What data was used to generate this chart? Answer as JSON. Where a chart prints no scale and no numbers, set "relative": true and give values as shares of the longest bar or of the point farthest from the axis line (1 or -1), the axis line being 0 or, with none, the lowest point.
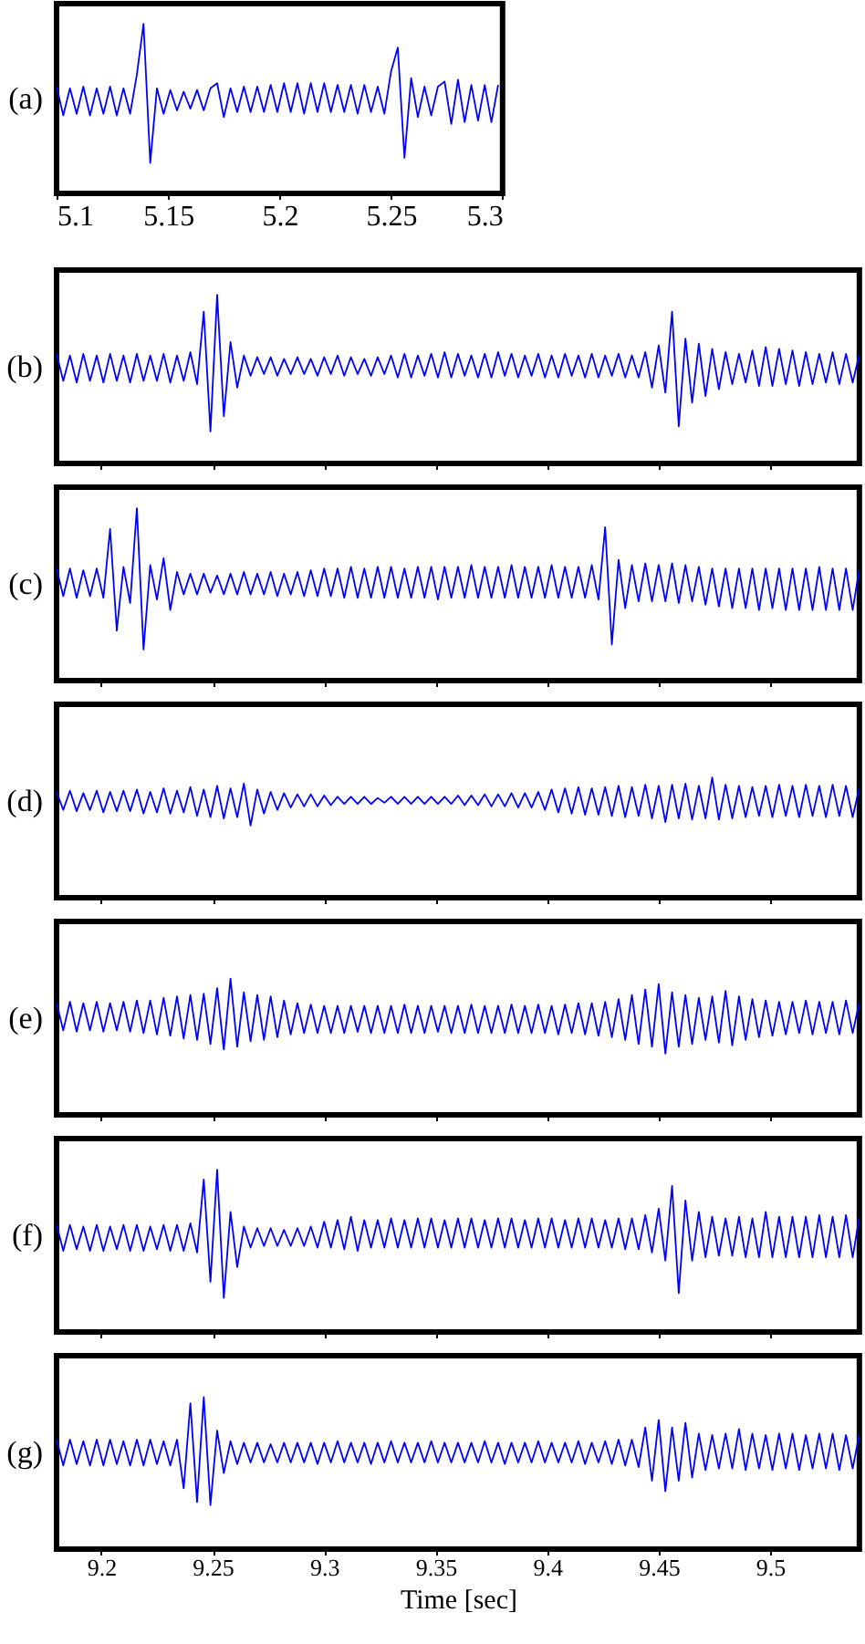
{
  "chart_data": [
    {
      "type": "line",
      "ylabel": "(a)",
      "relative": true,
      "tick_labels": "x",
      "xlim": [
        5.1,
        5.3
      ],
      "xticks": [
        5.1,
        5.15,
        5.2,
        5.25,
        5.3
      ],
      "x": [
        5.1,
        5.103,
        5.106,
        5.109,
        5.112,
        5.115,
        5.118,
        5.121,
        5.124,
        5.127,
        5.13,
        5.133,
        5.136,
        5.139,
        5.142,
        5.145,
        5.148,
        5.151,
        5.154,
        5.157,
        5.16,
        5.163,
        5.166,
        5.169,
        5.172,
        5.175,
        5.178,
        5.181,
        5.184,
        5.187,
        5.19,
        5.193,
        5.196,
        5.199,
        5.202,
        5.205,
        5.208,
        5.211,
        5.214,
        5.217,
        5.22,
        5.223,
        5.226,
        5.229,
        5.232,
        5.235,
        5.238,
        5.241,
        5.244,
        5.247,
        5.25,
        5.253,
        5.256,
        5.259,
        5.262,
        5.265,
        5.268,
        5.271,
        5.274,
        5.277,
        5.28,
        5.283,
        5.286,
        5.289,
        5.292,
        5.295,
        5.298
      ],
      "series": [
        {
          "color": "#0000ff",
          "values": [
            0.63,
            0.46,
            0.62,
            0.47,
            0.63,
            0.46,
            0.62,
            0.47,
            0.63,
            0.46,
            0.62,
            0.47,
            0.7,
            1.0,
            0.18,
            0.62,
            0.47,
            0.61,
            0.49,
            0.6,
            0.5,
            0.61,
            0.49,
            0.62,
            0.65,
            0.45,
            0.62,
            0.48,
            0.63,
            0.48,
            0.63,
            0.48,
            0.64,
            0.48,
            0.65,
            0.48,
            0.65,
            0.47,
            0.65,
            0.48,
            0.65,
            0.48,
            0.64,
            0.48,
            0.64,
            0.47,
            0.64,
            0.48,
            0.63,
            0.47,
            0.72,
            0.86,
            0.21,
            0.68,
            0.45,
            0.63,
            0.46,
            0.63,
            0.66,
            0.41,
            0.67,
            0.42,
            0.64,
            0.43,
            0.64,
            0.42,
            0.64
          ]
        }
      ]
    },
    {
      "type": "line",
      "ylabel": "(b)",
      "relative": true,
      "tick_labels": false,
      "xlim": [
        9.18,
        9.54
      ],
      "xticks": [
        9.2,
        9.25,
        9.3,
        9.35,
        9.4,
        9.45,
        9.5
      ],
      "x": [
        9.18,
        9.183,
        9.186,
        9.189,
        9.192,
        9.195,
        9.198,
        9.201,
        9.204,
        9.207,
        9.21,
        9.213,
        9.216,
        9.219,
        9.222,
        9.225,
        9.228,
        9.231,
        9.234,
        9.237,
        9.24,
        9.243,
        9.246,
        9.249,
        9.252,
        9.255,
        9.258,
        9.261,
        9.264,
        9.267,
        9.27,
        9.273,
        9.276,
        9.279,
        9.282,
        9.285,
        9.288,
        9.291,
        9.294,
        9.297,
        9.3,
        9.303,
        9.306,
        9.309,
        9.312,
        9.315,
        9.318,
        9.321,
        9.324,
        9.327,
        9.33,
        9.333,
        9.336,
        9.339,
        9.342,
        9.345,
        9.348,
        9.351,
        9.354,
        9.357,
        9.36,
        9.363,
        9.366,
        9.369,
        9.372,
        9.375,
        9.378,
        9.381,
        9.384,
        9.387,
        9.39,
        9.393,
        9.396,
        9.399,
        9.402,
        9.405,
        9.408,
        9.411,
        9.414,
        9.417,
        9.42,
        9.423,
        9.426,
        9.429,
        9.432,
        9.435,
        9.438,
        9.441,
        9.444,
        9.447,
        9.45,
        9.453,
        9.456,
        9.459,
        9.462,
        9.465,
        9.468,
        9.471,
        9.474,
        9.477,
        9.48,
        9.483,
        9.486,
        9.489,
        9.492,
        9.495,
        9.498,
        9.501,
        9.504,
        9.507,
        9.51,
        9.513,
        9.516,
        9.519,
        9.522,
        9.525,
        9.528,
        9.531,
        9.534,
        9.537,
        9.54
      ],
      "series": [
        {
          "color": "#0000ff",
          "values": [
            0.65,
            0.49,
            0.64,
            0.48,
            0.65,
            0.49,
            0.64,
            0.48,
            0.65,
            0.49,
            0.64,
            0.48,
            0.65,
            0.49,
            0.64,
            0.49,
            0.65,
            0.48,
            0.64,
            0.49,
            0.66,
            0.47,
            0.9,
            0.19,
            1.0,
            0.28,
            0.72,
            0.45,
            0.64,
            0.52,
            0.63,
            0.53,
            0.63,
            0.52,
            0.62,
            0.53,
            0.63,
            0.53,
            0.62,
            0.52,
            0.63,
            0.53,
            0.64,
            0.52,
            0.63,
            0.53,
            0.62,
            0.52,
            0.63,
            0.53,
            0.64,
            0.51,
            0.65,
            0.51,
            0.64,
            0.52,
            0.65,
            0.51,
            0.66,
            0.51,
            0.65,
            0.52,
            0.64,
            0.51,
            0.65,
            0.51,
            0.66,
            0.52,
            0.65,
            0.51,
            0.64,
            0.52,
            0.65,
            0.51,
            0.64,
            0.51,
            0.65,
            0.52,
            0.64,
            0.51,
            0.65,
            0.51,
            0.64,
            0.52,
            0.65,
            0.51,
            0.64,
            0.51,
            0.66,
            0.45,
            0.7,
            0.42,
            0.9,
            0.22,
            0.74,
            0.36,
            0.71,
            0.4,
            0.68,
            0.44,
            0.66,
            0.47,
            0.65,
            0.48,
            0.67,
            0.46,
            0.69,
            0.46,
            0.68,
            0.47,
            0.67,
            0.46,
            0.66,
            0.47,
            0.65,
            0.48,
            0.66,
            0.47,
            0.65,
            0.48,
            0.65
          ]
        }
      ]
    },
    {
      "type": "line",
      "ylabel": "(c)",
      "relative": true,
      "tick_labels": false,
      "xlim": [
        9.18,
        9.54
      ],
      "xticks": [
        9.2,
        9.25,
        9.3,
        9.35,
        9.4,
        9.45,
        9.5
      ],
      "x": [
        9.18,
        9.183,
        9.186,
        9.189,
        9.192,
        9.195,
        9.198,
        9.201,
        9.204,
        9.207,
        9.21,
        9.213,
        9.216,
        9.219,
        9.222,
        9.225,
        9.228,
        9.231,
        9.234,
        9.237,
        9.24,
        9.243,
        9.246,
        9.249,
        9.252,
        9.255,
        9.258,
        9.261,
        9.264,
        9.267,
        9.27,
        9.273,
        9.276,
        9.279,
        9.282,
        9.285,
        9.288,
        9.291,
        9.294,
        9.297,
        9.3,
        9.303,
        9.306,
        9.309,
        9.312,
        9.315,
        9.318,
        9.321,
        9.324,
        9.327,
        9.33,
        9.333,
        9.336,
        9.339,
        9.342,
        9.345,
        9.348,
        9.351,
        9.354,
        9.357,
        9.36,
        9.363,
        9.366,
        9.369,
        9.372,
        9.375,
        9.378,
        9.381,
        9.384,
        9.387,
        9.39,
        9.393,
        9.396,
        9.399,
        9.402,
        9.405,
        9.408,
        9.411,
        9.414,
        9.417,
        9.42,
        9.423,
        9.426,
        9.429,
        9.432,
        9.435,
        9.438,
        9.441,
        9.444,
        9.447,
        9.45,
        9.453,
        9.456,
        9.459,
        9.462,
        9.465,
        9.468,
        9.471,
        9.474,
        9.477,
        9.48,
        9.483,
        9.486,
        9.489,
        9.492,
        9.495,
        9.498,
        9.501,
        9.504,
        9.507,
        9.51,
        9.513,
        9.516,
        9.519,
        9.522,
        9.525,
        9.528,
        9.531,
        9.534,
        9.537,
        9.54
      ],
      "series": [
        {
          "color": "#0000ff",
          "values": [
            0.65,
            0.49,
            0.65,
            0.48,
            0.64,
            0.49,
            0.65,
            0.48,
            0.88,
            0.29,
            0.66,
            0.45,
            1.0,
            0.18,
            0.67,
            0.47,
            0.71,
            0.41,
            0.63,
            0.5,
            0.62,
            0.5,
            0.62,
            0.51,
            0.61,
            0.5,
            0.62,
            0.5,
            0.63,
            0.5,
            0.62,
            0.5,
            0.63,
            0.49,
            0.62,
            0.5,
            0.63,
            0.49,
            0.64,
            0.49,
            0.65,
            0.49,
            0.65,
            0.48,
            0.66,
            0.48,
            0.65,
            0.48,
            0.66,
            0.48,
            0.66,
            0.48,
            0.65,
            0.48,
            0.66,
            0.48,
            0.66,
            0.47,
            0.66,
            0.48,
            0.66,
            0.48,
            0.67,
            0.48,
            0.66,
            0.48,
            0.66,
            0.48,
            0.67,
            0.48,
            0.66,
            0.48,
            0.66,
            0.48,
            0.67,
            0.48,
            0.66,
            0.48,
            0.66,
            0.48,
            0.67,
            0.47,
            0.89,
            0.21,
            0.7,
            0.42,
            0.67,
            0.46,
            0.68,
            0.46,
            0.67,
            0.46,
            0.68,
            0.45,
            0.67,
            0.46,
            0.66,
            0.44,
            0.65,
            0.43,
            0.65,
            0.42,
            0.65,
            0.42,
            0.65,
            0.41,
            0.65,
            0.42,
            0.65,
            0.41,
            0.65,
            0.41,
            0.65,
            0.41,
            0.66,
            0.41,
            0.65,
            0.41,
            0.65,
            0.41,
            0.65
          ]
        }
      ]
    },
    {
      "type": "line",
      "ylabel": "(d)",
      "relative": true,
      "tick_labels": false,
      "xlim": [
        9.18,
        9.54
      ],
      "xticks": [
        9.2,
        9.25,
        9.3,
        9.35,
        9.4,
        9.45,
        9.5
      ],
      "x": [
        9.18,
        9.183,
        9.186,
        9.189,
        9.192,
        9.195,
        9.198,
        9.201,
        9.204,
        9.207,
        9.21,
        9.213,
        9.216,
        9.219,
        9.222,
        9.225,
        9.228,
        9.231,
        9.234,
        9.237,
        9.24,
        9.243,
        9.246,
        9.249,
        9.252,
        9.255,
        9.258,
        9.261,
        9.264,
        9.267,
        9.27,
        9.273,
        9.276,
        9.279,
        9.282,
        9.285,
        9.288,
        9.291,
        9.294,
        9.297,
        9.3,
        9.303,
        9.306,
        9.309,
        9.312,
        9.315,
        9.318,
        9.321,
        9.324,
        9.327,
        9.33,
        9.333,
        9.336,
        9.339,
        9.342,
        9.345,
        9.348,
        9.351,
        9.354,
        9.357,
        9.36,
        9.363,
        9.366,
        9.369,
        9.372,
        9.375,
        9.378,
        9.381,
        9.384,
        9.387,
        9.39,
        9.393,
        9.396,
        9.399,
        9.402,
        9.405,
        9.408,
        9.411,
        9.414,
        9.417,
        9.42,
        9.423,
        9.426,
        9.429,
        9.432,
        9.435,
        9.438,
        9.441,
        9.444,
        9.447,
        9.45,
        9.453,
        9.456,
        9.459,
        9.462,
        9.465,
        9.468,
        9.471,
        9.474,
        9.477,
        9.48,
        9.483,
        9.486,
        9.489,
        9.492,
        9.495,
        9.498,
        9.501,
        9.504,
        9.507,
        9.51,
        9.513,
        9.516,
        9.519,
        9.522,
        9.525,
        9.528,
        9.531,
        9.534,
        9.537,
        9.54
      ],
      "series": [
        {
          "color": "#0000ff",
          "values": [
            0.88,
            0.73,
            0.89,
            0.72,
            0.87,
            0.73,
            0.89,
            0.71,
            0.88,
            0.72,
            0.89,
            0.72,
            0.9,
            0.7,
            0.88,
            0.71,
            0.91,
            0.7,
            0.89,
            0.71,
            0.92,
            0.68,
            0.9,
            0.67,
            0.93,
            0.66,
            0.91,
            0.67,
            0.95,
            0.6,
            0.9,
            0.7,
            0.88,
            0.73,
            0.87,
            0.75,
            0.86,
            0.76,
            0.86,
            0.76,
            0.85,
            0.77,
            0.84,
            0.78,
            0.84,
            0.78,
            0.84,
            0.78,
            0.83,
            0.79,
            0.84,
            0.78,
            0.84,
            0.78,
            0.84,
            0.78,
            0.84,
            0.78,
            0.84,
            0.78,
            0.85,
            0.77,
            0.85,
            0.77,
            0.86,
            0.76,
            0.86,
            0.76,
            0.87,
            0.75,
            0.87,
            0.75,
            0.88,
            0.73,
            0.9,
            0.71,
            0.91,
            0.7,
            0.92,
            0.69,
            0.91,
            0.69,
            0.92,
            0.68,
            0.93,
            0.67,
            0.92,
            0.68,
            0.94,
            0.66,
            0.93,
            0.63,
            0.94,
            0.66,
            0.95,
            0.65,
            0.93,
            0.66,
            1.0,
            0.65,
            0.94,
            0.66,
            0.93,
            0.67,
            0.92,
            0.68,
            0.93,
            0.67,
            0.94,
            0.68,
            0.93,
            0.67,
            0.94,
            0.68,
            0.93,
            0.67,
            0.94,
            0.68,
            0.93,
            0.67,
            0.92
          ]
        }
      ]
    },
    {
      "type": "line",
      "ylabel": "(e)",
      "relative": true,
      "tick_labels": false,
      "xlim": [
        9.18,
        9.54
      ],
      "xticks": [
        9.2,
        9.25,
        9.3,
        9.35,
        9.4,
        9.45,
        9.5
      ],
      "x": [
        9.18,
        9.183,
        9.186,
        9.189,
        9.192,
        9.195,
        9.198,
        9.201,
        9.204,
        9.207,
        9.21,
        9.213,
        9.216,
        9.219,
        9.222,
        9.225,
        9.228,
        9.231,
        9.234,
        9.237,
        9.24,
        9.243,
        9.246,
        9.249,
        9.252,
        9.255,
        9.258,
        9.261,
        9.264,
        9.267,
        9.27,
        9.273,
        9.276,
        9.279,
        9.282,
        9.285,
        9.288,
        9.291,
        9.294,
        9.297,
        9.3,
        9.303,
        9.306,
        9.309,
        9.312,
        9.315,
        9.318,
        9.321,
        9.324,
        9.327,
        9.33,
        9.333,
        9.336,
        9.339,
        9.342,
        9.345,
        9.348,
        9.351,
        9.354,
        9.357,
        9.36,
        9.363,
        9.366,
        9.369,
        9.372,
        9.375,
        9.378,
        9.381,
        9.384,
        9.387,
        9.39,
        9.393,
        9.396,
        9.399,
        9.402,
        9.405,
        9.408,
        9.411,
        9.414,
        9.417,
        9.42,
        9.423,
        9.426,
        9.429,
        9.432,
        9.435,
        9.438,
        9.441,
        9.444,
        9.447,
        9.45,
        9.453,
        9.456,
        9.459,
        9.462,
        9.465,
        9.468,
        9.471,
        9.474,
        9.477,
        9.48,
        9.483,
        9.486,
        9.489,
        9.492,
        9.495,
        9.498,
        9.501,
        9.504,
        9.507,
        9.51,
        9.513,
        9.516,
        9.519,
        9.522,
        9.525,
        9.528,
        9.531,
        9.534,
        9.537,
        9.54
      ],
      "series": [
        {
          "color": "#0000ff",
          "values": [
            0.82,
            0.62,
            0.83,
            0.61,
            0.82,
            0.62,
            0.83,
            0.61,
            0.82,
            0.62,
            0.83,
            0.61,
            0.84,
            0.6,
            0.84,
            0.59,
            0.86,
            0.58,
            0.87,
            0.56,
            0.88,
            0.55,
            0.89,
            0.52,
            0.93,
            0.48,
            1.0,
            0.5,
            0.9,
            0.54,
            0.88,
            0.55,
            0.87,
            0.57,
            0.84,
            0.59,
            0.82,
            0.6,
            0.81,
            0.6,
            0.8,
            0.6,
            0.8,
            0.6,
            0.8,
            0.61,
            0.8,
            0.6,
            0.8,
            0.6,
            0.8,
            0.6,
            0.81,
            0.6,
            0.8,
            0.6,
            0.8,
            0.61,
            0.8,
            0.6,
            0.8,
            0.6,
            0.81,
            0.6,
            0.8,
            0.6,
            0.8,
            0.6,
            0.81,
            0.6,
            0.8,
            0.6,
            0.81,
            0.6,
            0.8,
            0.59,
            0.81,
            0.6,
            0.82,
            0.59,
            0.82,
            0.58,
            0.83,
            0.57,
            0.85,
            0.55,
            0.88,
            0.52,
            0.92,
            0.5,
            0.96,
            0.45,
            0.9,
            0.5,
            0.88,
            0.52,
            0.86,
            0.55,
            0.87,
            0.53,
            0.91,
            0.51,
            0.87,
            0.55,
            0.85,
            0.57,
            0.84,
            0.58,
            0.83,
            0.59,
            0.83,
            0.6,
            0.84,
            0.59,
            0.83,
            0.6,
            0.83,
            0.59,
            0.84,
            0.6,
            0.83
          ]
        }
      ]
    },
    {
      "type": "line",
      "ylabel": "(f)",
      "relative": true,
      "tick_labels": false,
      "xlim": [
        9.18,
        9.54
      ],
      "xticks": [
        9.2,
        9.25,
        9.3,
        9.35,
        9.4,
        9.45,
        9.5
      ],
      "x": [
        9.18,
        9.183,
        9.186,
        9.189,
        9.192,
        9.195,
        9.198,
        9.201,
        9.204,
        9.207,
        9.21,
        9.213,
        9.216,
        9.219,
        9.222,
        9.225,
        9.228,
        9.231,
        9.234,
        9.237,
        9.24,
        9.243,
        9.246,
        9.249,
        9.252,
        9.255,
        9.258,
        9.261,
        9.264,
        9.267,
        9.27,
        9.273,
        9.276,
        9.279,
        9.282,
        9.285,
        9.288,
        9.291,
        9.294,
        9.297,
        9.3,
        9.303,
        9.306,
        9.309,
        9.312,
        9.315,
        9.318,
        9.321,
        9.324,
        9.327,
        9.33,
        9.333,
        9.336,
        9.339,
        9.342,
        9.345,
        9.348,
        9.351,
        9.354,
        9.357,
        9.36,
        9.363,
        9.366,
        9.369,
        9.372,
        9.375,
        9.378,
        9.381,
        9.384,
        9.387,
        9.39,
        9.393,
        9.396,
        9.399,
        9.402,
        9.405,
        9.408,
        9.411,
        9.414,
        9.417,
        9.42,
        9.423,
        9.426,
        9.429,
        9.432,
        9.435,
        9.438,
        9.441,
        9.444,
        9.447,
        9.45,
        9.453,
        9.456,
        9.459,
        9.462,
        9.465,
        9.468,
        9.471,
        9.474,
        9.477,
        9.48,
        9.483,
        9.486,
        9.489,
        9.492,
        9.495,
        9.498,
        9.501,
        9.504,
        9.507,
        9.51,
        9.513,
        9.516,
        9.519,
        9.522,
        9.525,
        9.528,
        9.531,
        9.534,
        9.537,
        9.54
      ],
      "series": [
        {
          "color": "#0000ff",
          "values": [
            0.66,
            0.5,
            0.66,
            0.51,
            0.65,
            0.5,
            0.66,
            0.5,
            0.65,
            0.51,
            0.66,
            0.5,
            0.66,
            0.5,
            0.65,
            0.51,
            0.66,
            0.5,
            0.66,
            0.5,
            0.67,
            0.49,
            0.94,
            0.31,
            1.0,
            0.21,
            0.74,
            0.4,
            0.65,
            0.52,
            0.64,
            0.53,
            0.64,
            0.53,
            0.63,
            0.53,
            0.64,
            0.53,
            0.65,
            0.52,
            0.68,
            0.52,
            0.69,
            0.51,
            0.71,
            0.5,
            0.69,
            0.52,
            0.69,
            0.52,
            0.7,
            0.52,
            0.69,
            0.52,
            0.7,
            0.52,
            0.7,
            0.52,
            0.69,
            0.52,
            0.7,
            0.52,
            0.7,
            0.52,
            0.69,
            0.52,
            0.7,
            0.52,
            0.7,
            0.52,
            0.69,
            0.52,
            0.7,
            0.52,
            0.7,
            0.52,
            0.69,
            0.52,
            0.7,
            0.52,
            0.7,
            0.52,
            0.69,
            0.52,
            0.7,
            0.51,
            0.7,
            0.51,
            0.72,
            0.49,
            0.76,
            0.44,
            0.9,
            0.24,
            0.81,
            0.44,
            0.74,
            0.46,
            0.71,
            0.47,
            0.7,
            0.47,
            0.71,
            0.46,
            0.7,
            0.46,
            0.74,
            0.46,
            0.71,
            0.46,
            0.71,
            0.46,
            0.71,
            0.46,
            0.72,
            0.46,
            0.71,
            0.46,
            0.72,
            0.46,
            0.71
          ]
        }
      ]
    },
    {
      "type": "line",
      "ylabel": "(g)",
      "xlabel": "Time [sec]",
      "relative": true,
      "tick_labels": "x",
      "xlim": [
        9.18,
        9.54
      ],
      "xticks": [
        9.2,
        9.25,
        9.3,
        9.35,
        9.4,
        9.45,
        9.5
      ],
      "x": [
        9.18,
        9.183,
        9.186,
        9.189,
        9.192,
        9.195,
        9.198,
        9.201,
        9.204,
        9.207,
        9.21,
        9.213,
        9.216,
        9.219,
        9.222,
        9.225,
        9.228,
        9.231,
        9.234,
        9.237,
        9.24,
        9.243,
        9.246,
        9.249,
        9.252,
        9.255,
        9.258,
        9.261,
        9.264,
        9.267,
        9.27,
        9.273,
        9.276,
        9.279,
        9.282,
        9.285,
        9.288,
        9.291,
        9.294,
        9.297,
        9.3,
        9.303,
        9.306,
        9.309,
        9.312,
        9.315,
        9.318,
        9.321,
        9.324,
        9.327,
        9.33,
        9.333,
        9.336,
        9.339,
        9.342,
        9.345,
        9.348,
        9.351,
        9.354,
        9.357,
        9.36,
        9.363,
        9.366,
        9.369,
        9.372,
        9.375,
        9.378,
        9.381,
        9.384,
        9.387,
        9.39,
        9.393,
        9.396,
        9.399,
        9.402,
        9.405,
        9.408,
        9.411,
        9.414,
        9.417,
        9.42,
        9.423,
        9.426,
        9.429,
        9.432,
        9.435,
        9.438,
        9.441,
        9.444,
        9.447,
        9.45,
        9.453,
        9.456,
        9.459,
        9.462,
        9.465,
        9.468,
        9.471,
        9.474,
        9.477,
        9.48,
        9.483,
        9.486,
        9.489,
        9.492,
        9.495,
        9.498,
        9.501,
        9.504,
        9.507,
        9.51,
        9.513,
        9.516,
        9.519,
        9.522,
        9.525,
        9.528,
        9.531,
        9.534,
        9.537,
        9.54
      ],
      "series": [
        {
          "color": "#0000ff",
          "values": [
            0.72,
            0.55,
            0.72,
            0.56,
            0.71,
            0.55,
            0.72,
            0.55,
            0.72,
            0.56,
            0.71,
            0.55,
            0.72,
            0.55,
            0.72,
            0.56,
            0.71,
            0.55,
            0.72,
            0.4,
            0.96,
            0.31,
            1.0,
            0.29,
            0.78,
            0.5,
            0.71,
            0.56,
            0.7,
            0.57,
            0.7,
            0.57,
            0.69,
            0.57,
            0.7,
            0.57,
            0.7,
            0.57,
            0.7,
            0.56,
            0.7,
            0.57,
            0.71,
            0.57,
            0.7,
            0.57,
            0.7,
            0.56,
            0.7,
            0.57,
            0.71,
            0.57,
            0.7,
            0.57,
            0.7,
            0.57,
            0.71,
            0.57,
            0.7,
            0.57,
            0.7,
            0.57,
            0.7,
            0.57,
            0.71,
            0.57,
            0.7,
            0.56,
            0.7,
            0.57,
            0.7,
            0.57,
            0.71,
            0.57,
            0.7,
            0.57,
            0.7,
            0.57,
            0.71,
            0.56,
            0.7,
            0.57,
            0.71,
            0.56,
            0.72,
            0.55,
            0.72,
            0.54,
            0.8,
            0.45,
            0.85,
            0.38,
            0.8,
            0.45,
            0.83,
            0.47,
            0.76,
            0.52,
            0.75,
            0.53,
            0.76,
            0.53,
            0.79,
            0.52,
            0.76,
            0.53,
            0.75,
            0.52,
            0.76,
            0.53,
            0.76,
            0.52,
            0.75,
            0.53,
            0.76,
            0.53,
            0.76,
            0.52,
            0.75,
            0.53,
            0.76
          ]
        }
      ]
    }
  ]
}
